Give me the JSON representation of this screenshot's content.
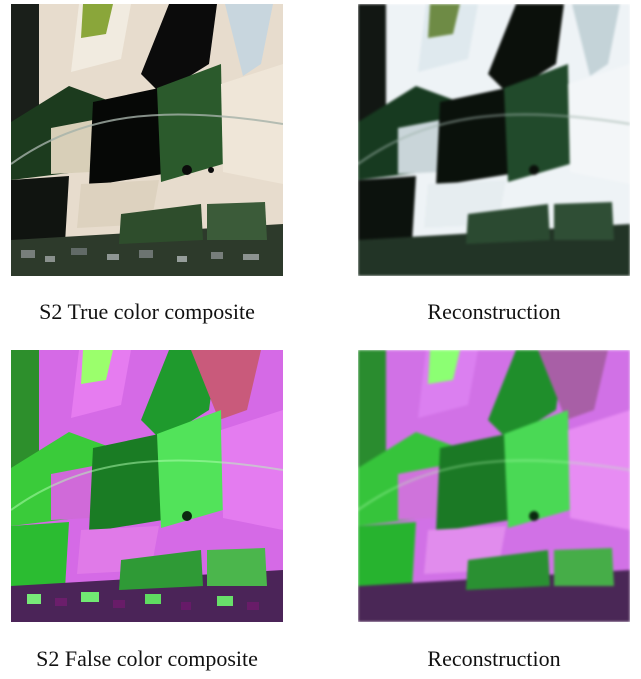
{
  "figure": {
    "panels": [
      {
        "id": "true-color",
        "caption": "S2 True color composite"
      },
      {
        "id": "true-color-reconstruction",
        "caption": "Reconstruction"
      },
      {
        "id": "false-color",
        "caption": "S2 False color composite"
      },
      {
        "id": "false-color-reconstruction",
        "caption": "Reconstruction"
      }
    ]
  }
}
